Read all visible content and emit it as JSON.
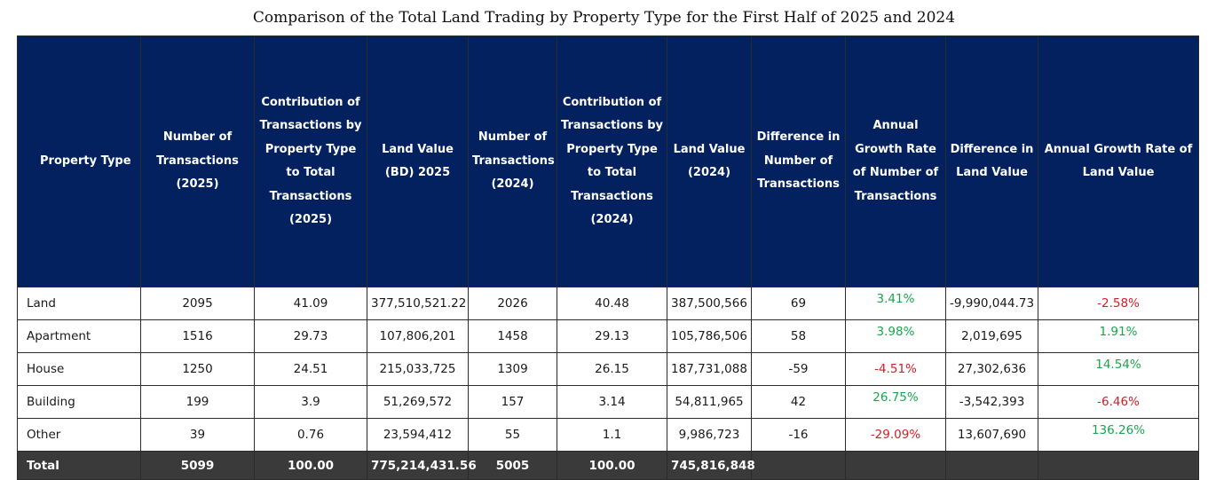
{
  "title": "Comparison of the Total Land Trading by Property Type for the First Half of 2025 and 2024",
  "headers": [
    "Property Type",
    "Number of Transactions (2025)",
    "Contribution of Transactions by Property Type to Total Transactions (2025)",
    "Land Value (BD) 2025",
    "Number of Transactions (2024)",
    "Contribution of Transactions by Property Type to Total Transactions (2024)",
    "Land Value (2024)",
    "Difference in Number of Transactions",
    "Annual Growth Rate of Number of Transactions",
    "Difference in Land Value",
    "Annual Growth Rate of Land Value"
  ],
  "rows": [
    [
      "Land",
      "2095",
      "41.09",
      "377,510,521.22",
      "2026",
      "40.48",
      "387,500,566",
      "69",
      "3.41%",
      "-9,990,044.73",
      "-2.58%"
    ],
    [
      "Apartment",
      "1516",
      "29.73",
      "107,806,201",
      "1458",
      "29.13",
      "105,786,506",
      "58",
      "3.98%",
      "2,019,695",
      "1.91%"
    ],
    [
      "House",
      "1250",
      "24.51",
      "215,033,725",
      "1309",
      "26.15",
      "187,731,088",
      "-59",
      "-4.51%",
      "27,302,636",
      "14.54%"
    ],
    [
      "Building",
      "199",
      "3.9",
      "51,269,572",
      "157",
      "3.14",
      "54,811,965",
      "42",
      "26.75%",
      "-3,542,393",
      "-6.46%"
    ],
    [
      "Other",
      "39",
      "0.76",
      "23,594,412",
      "55",
      "1.1",
      "9,986,723",
      "-16",
      "-29.09%",
      "13,607,690",
      "136.26%"
    ]
  ],
  "total": [
    "Total",
    "5099",
    "100.00",
    "775,214,431.56",
    "5005",
    "100.00",
    "745,816,848",
    "",
    "",
    "",
    ""
  ],
  "colors": {
    "header_bg": "#03215f",
    "total_bg": "#3a3a3a",
    "positive": "#18a64b",
    "negative": "#d0202a"
  }
}
